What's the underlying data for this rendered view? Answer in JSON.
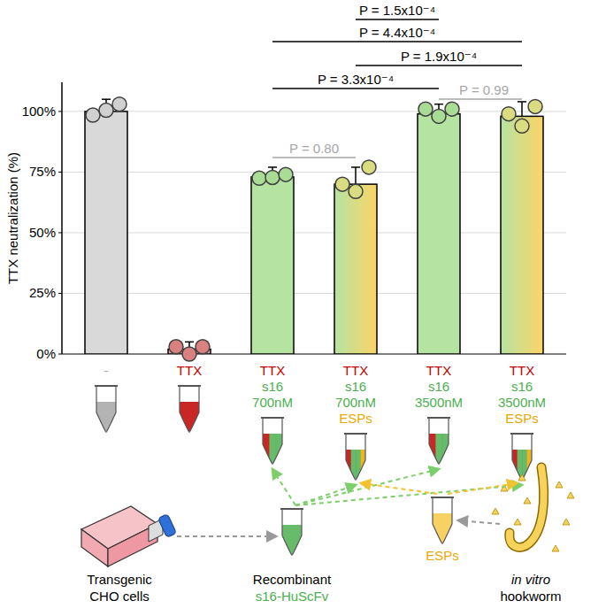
{
  "chart_data": {
    "type": "bar",
    "y_label": "TTX neutralization (%)",
    "categories": [
      "-",
      "TTX",
      "TTX\ns16\n700nM",
      "TTX\ns16\n700nM\nESPs",
      "TTX\ns16\n3500nM",
      "TTX\ns16\n3500nM\nESPs"
    ],
    "category_line_colors": [
      [
        "#a6a6a6"
      ],
      [
        "#c00000"
      ],
      [
        "#c00000",
        "#4caf50",
        "#4caf50"
      ],
      [
        "#c00000",
        "#4caf50",
        "#4caf50",
        "#e8a800"
      ],
      [
        "#c00000",
        "#4caf50",
        "#4caf50"
      ],
      [
        "#c00000",
        "#4caf50",
        "#4caf50",
        "#e8a800"
      ]
    ],
    "values": [
      100,
      2,
      73,
      70,
      99,
      98
    ],
    "errors": [
      5,
      3,
      4,
      7,
      4,
      6
    ],
    "points": [
      [
        98.5,
        100.5,
        103
      ],
      [
        3,
        0,
        3
      ],
      [
        72.5,
        72.8,
        74
      ],
      [
        70,
        67,
        77
      ],
      [
        101,
        98,
        101
      ],
      [
        99,
        94,
        102
      ]
    ],
    "colors": [
      "#d9d9d9",
      "#e6a3a3",
      "#b5e3a2",
      "#b5e3a2",
      "#b5e3a2",
      "#b5e3a2"
    ],
    "gradient_colors": [
      null,
      null,
      null,
      "#fcd466",
      null,
      "#fcd466"
    ],
    "point_colors": [
      "#d0d0d0",
      "#d98080",
      "#a9dc94",
      "#d9dc80",
      "#a9dc94",
      "#d9dc80"
    ],
    "ylim": [
      0,
      112
    ],
    "yticks": [
      {
        "value": 0,
        "label": "0%"
      },
      {
        "value": 25,
        "label": "25%"
      },
      {
        "value": 50,
        "label": "50%"
      },
      {
        "value": 75,
        "label": "75%"
      },
      {
        "value": 100,
        "label": "100%"
      }
    ],
    "grid": true,
    "significance": [
      {
        "from": 3,
        "to": 4,
        "label": "P = 1.5x10⁻⁴",
        "color": "#000000"
      },
      {
        "from": 2,
        "to": 5,
        "label": "P = 4.4x10⁻⁴",
        "color": "#000000"
      },
      {
        "from": 3,
        "to": 5,
        "label": "P = 1.9x10⁻⁴",
        "color": "#000000"
      },
      {
        "from": 2,
        "to": 4,
        "label": "P = 3.3x10⁻⁴",
        "color": "#000000"
      },
      {
        "from": 4,
        "to": 5,
        "label": "P = 0.99",
        "color": "#a6a6a6"
      },
      {
        "from": 2,
        "to": 3,
        "label": "P = 0.80",
        "color": "#a6a6a6"
      }
    ],
    "schematic": {
      "cells_label": [
        "Transgenic",
        "CHO cells"
      ],
      "protein_label": [
        "Recombinant",
        "s16-HuScFv"
      ],
      "esp_label": "ESPs",
      "worm_label": [
        "in vitro",
        "hookworm"
      ]
    }
  }
}
